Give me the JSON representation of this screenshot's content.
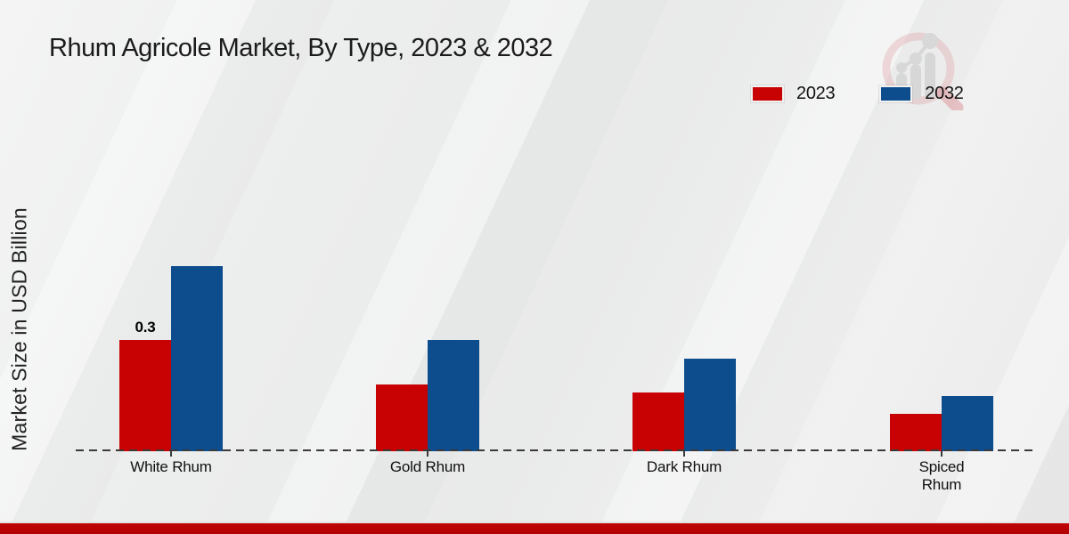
{
  "title": "Rhum Agricole Market, By Type, 2023 & 2032",
  "ylabel": "Market Size in USD Billion",
  "legend": [
    {
      "label": "2023",
      "color": "#c80202"
    },
    {
      "label": "2032",
      "color": "#0e4d8d"
    }
  ],
  "colors": {
    "series_2023": "#c80202",
    "series_2032": "#0e4d8d",
    "footer_bar": "#b80303",
    "axis_dash": "#3a3a3a",
    "text": "#1a1a1a"
  },
  "watermark": {
    "name": "magnifier-growth-chart-logo"
  },
  "chart_data": {
    "type": "bar",
    "categories": [
      "White Rhum",
      "Gold Rhum",
      "Dark Rhum",
      "Spiced\nRhum"
    ],
    "series": [
      {
        "name": "2023",
        "color": "#c80202",
        "values": [
          0.3,
          0.18,
          0.16,
          0.1
        ]
      },
      {
        "name": "2032",
        "color": "#0e4d8d",
        "values": [
          0.5,
          0.3,
          0.25,
          0.15
        ]
      }
    ],
    "annotations": [
      {
        "series": "2023",
        "category_index": 0,
        "text": "0.3"
      }
    ],
    "title": "Rhum Agricole Market, By Type, 2023 & 2032",
    "xlabel": "",
    "ylabel": "Market Size in USD Billion",
    "ylim": [
      0,
      0.55
    ],
    "grid": false,
    "legend_position": "top-right",
    "baseline_style": "dashed"
  }
}
